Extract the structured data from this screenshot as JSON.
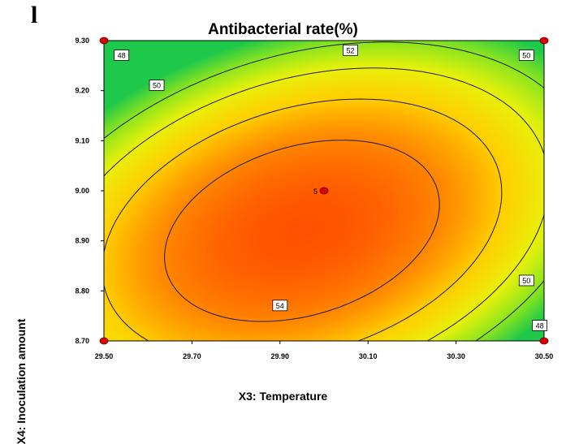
{
  "panel_label": "l",
  "chart_data": {
    "type": "contour",
    "title": "Antibacterial rate(%)",
    "xlabel": "X3: Temperature",
    "ylabel": "X4: Inoculation amount",
    "xlim": [
      29.5,
      30.5
    ],
    "ylim": [
      8.7,
      9.3
    ],
    "x_ticks": [
      "29.50",
      "29.70",
      "29.90",
      "30.10",
      "30.30",
      "30.50"
    ],
    "y_ticks": [
      "8.70",
      "8.80",
      "8.90",
      "9.00",
      "9.10",
      "9.20",
      "9.30"
    ],
    "contour_levels": [
      48,
      50,
      52,
      54
    ],
    "contour_labels": [
      {
        "text": "48",
        "x": 29.54,
        "y": 9.27
      },
      {
        "text": "50",
        "x": 29.62,
        "y": 9.21
      },
      {
        "text": "52",
        "x": 30.06,
        "y": 9.28
      },
      {
        "text": "50",
        "x": 30.46,
        "y": 9.27
      },
      {
        "text": "54",
        "x": 29.9,
        "y": 8.77
      },
      {
        "text": "50",
        "x": 30.46,
        "y": 8.82
      },
      {
        "text": "48",
        "x": 30.49,
        "y": 8.73
      }
    ],
    "center_point": {
      "label": "5",
      "x": 30.0,
      "y": 9.0
    },
    "design_points": [
      {
        "x": 29.5,
        "y": 8.7
      },
      {
        "x": 29.5,
        "y": 9.3
      },
      {
        "x": 30.5,
        "y": 8.7
      },
      {
        "x": 30.5,
        "y": 9.3
      },
      {
        "x": 30.0,
        "y": 9.0
      }
    ],
    "colormap": [
      "#1ec84a",
      "#8be51f",
      "#e8f10a",
      "#ffd000",
      "#ff8a00",
      "#ff5200"
    ],
    "grid": false
  }
}
